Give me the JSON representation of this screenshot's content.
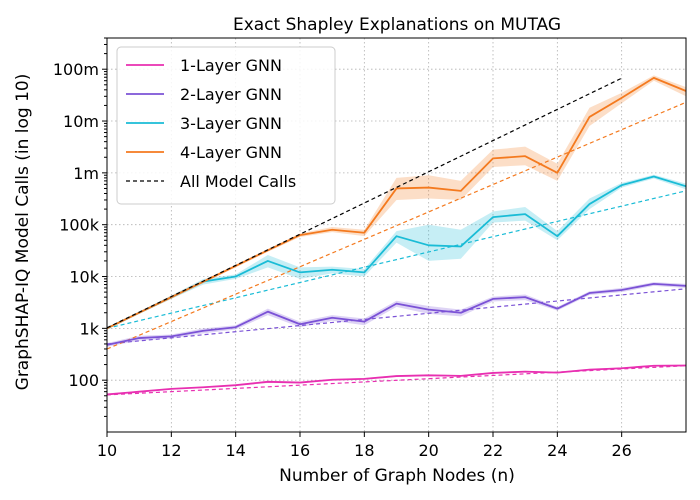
{
  "chart_data": {
    "type": "line",
    "title": "Exact Shapley Explanations on MUTAG",
    "xlabel": "Number of Graph Nodes (n)",
    "ylabel": "GraphSHAP-IQ Model Calls (in log 10)",
    "xlim": [
      10,
      28
    ],
    "ylim": [
      10,
      400000000
    ],
    "yscale": "log10",
    "grid": true,
    "legend_position": "top-left",
    "x_ticks": [
      10,
      12,
      14,
      16,
      18,
      20,
      22,
      24,
      26
    ],
    "x_tick_labels": [
      "10",
      "12",
      "14",
      "16",
      "18",
      "20",
      "22",
      "24",
      "26"
    ],
    "y_ticks": [
      100,
      1000,
      10000,
      100000,
      1000000,
      10000000,
      100000000
    ],
    "y_tick_labels": [
      "100",
      "1k",
      "10k",
      "100k",
      "1m",
      "10m",
      "100m"
    ],
    "series": [
      {
        "name": "1-Layer GNN",
        "color": "#e82fb1",
        "x": [
          10,
          11,
          12,
          13,
          14,
          15,
          16,
          17,
          18,
          19,
          20,
          21,
          22,
          23,
          24,
          25,
          26,
          27,
          28
        ],
        "values": [
          53,
          60,
          68,
          73,
          80,
          93,
          90,
          102,
          106,
          120,
          124,
          121,
          138,
          146,
          140,
          160,
          170,
          190,
          192
        ],
        "lower": [
          51,
          58,
          66,
          71,
          78,
          88,
          87,
          99,
          103,
          116,
          120,
          118,
          134,
          141,
          136,
          155,
          165,
          184,
          186
        ],
        "upper": [
          55,
          62,
          70,
          75,
          82,
          98,
          94,
          105,
          110,
          124,
          128,
          125,
          142,
          151,
          145,
          165,
          175,
          196,
          198
        ],
        "trend": [
          [
            10,
            52
          ],
          [
            28,
            190
          ]
        ]
      },
      {
        "name": "2-Layer GNN",
        "color": "#7b52d6",
        "x": [
          10,
          11,
          12,
          13,
          14,
          15,
          16,
          17,
          18,
          19,
          20,
          21,
          22,
          23,
          24,
          25,
          26,
          27,
          28
        ],
        "values": [
          480,
          650,
          700,
          900,
          1050,
          2100,
          1200,
          1600,
          1350,
          3000,
          2300,
          2000,
          3700,
          4000,
          2400,
          4800,
          5500,
          7200,
          6600
        ],
        "lower": [
          440,
          580,
          640,
          800,
          950,
          1800,
          1050,
          1400,
          1150,
          2600,
          1900,
          1700,
          3300,
          3500,
          2200,
          4400,
          5000,
          6600,
          6000
        ],
        "upper": [
          520,
          720,
          760,
          1000,
          1150,
          2400,
          1350,
          1800,
          1550,
          3400,
          2700,
          2300,
          4100,
          4500,
          2600,
          5200,
          6000,
          7800,
          7200
        ],
        "trend": [
          [
            10,
            500
          ],
          [
            28,
            5800
          ]
        ]
      },
      {
        "name": "3-Layer GNN",
        "color": "#1abcd6",
        "x": [
          10,
          11,
          12,
          13,
          14,
          15,
          16,
          17,
          18,
          19,
          20,
          21,
          22,
          23,
          24,
          25,
          26,
          27,
          28
        ],
        "values": [
          1000,
          2000,
          4000,
          8000,
          10000,
          20000,
          12000,
          13500,
          12000,
          60000,
          40000,
          38000,
          140000,
          160000,
          60000,
          250000,
          580000,
          850000,
          550000
        ],
        "lower": [
          950,
          1900,
          3700,
          7000,
          9000,
          15000,
          9000,
          11500,
          10000,
          45000,
          20000,
          22000,
          110000,
          120000,
          50000,
          200000,
          520000,
          780000,
          480000
        ],
        "upper": [
          1050,
          2100,
          4300,
          9000,
          11000,
          26000,
          15000,
          15500,
          14000,
          75000,
          100000,
          80000,
          180000,
          220000,
          75000,
          320000,
          640000,
          920000,
          620000
        ],
        "trend": [
          [
            10,
            1000
          ],
          [
            28,
            450000
          ]
        ]
      },
      {
        "name": "4-Layer GNN",
        "color": "#f47a1f",
        "x": [
          10,
          11,
          12,
          13,
          14,
          15,
          16,
          17,
          18,
          19,
          20,
          21,
          22,
          23,
          24,
          25,
          26,
          27,
          28
        ],
        "values": [
          1000,
          2000,
          4000,
          8000,
          16000,
          32000,
          63000,
          80000,
          70000,
          500000,
          520000,
          450000,
          1900000,
          2100000,
          1000000,
          12000000,
          28000000,
          68000000,
          38000000
        ],
        "lower": [
          950,
          1900,
          3700,
          7500,
          15000,
          30000,
          58000,
          72000,
          60000,
          300000,
          320000,
          300000,
          1300000,
          1400000,
          700000,
          8000000,
          22000000,
          60000000,
          30000000
        ],
        "upper": [
          1050,
          2100,
          4300,
          8500,
          17000,
          34000,
          68000,
          90000,
          80000,
          800000,
          900000,
          700000,
          2800000,
          3200000,
          1500000,
          18000000,
          35000000,
          76000000,
          45000000
        ],
        "trend": [
          [
            10,
            400
          ],
          [
            28,
            23000000
          ]
        ]
      },
      {
        "name": "All Model Calls",
        "color": "#000000",
        "dashed": true,
        "x": [
          10,
          26
        ],
        "values": [
          1024,
          67108864
        ]
      }
    ]
  }
}
